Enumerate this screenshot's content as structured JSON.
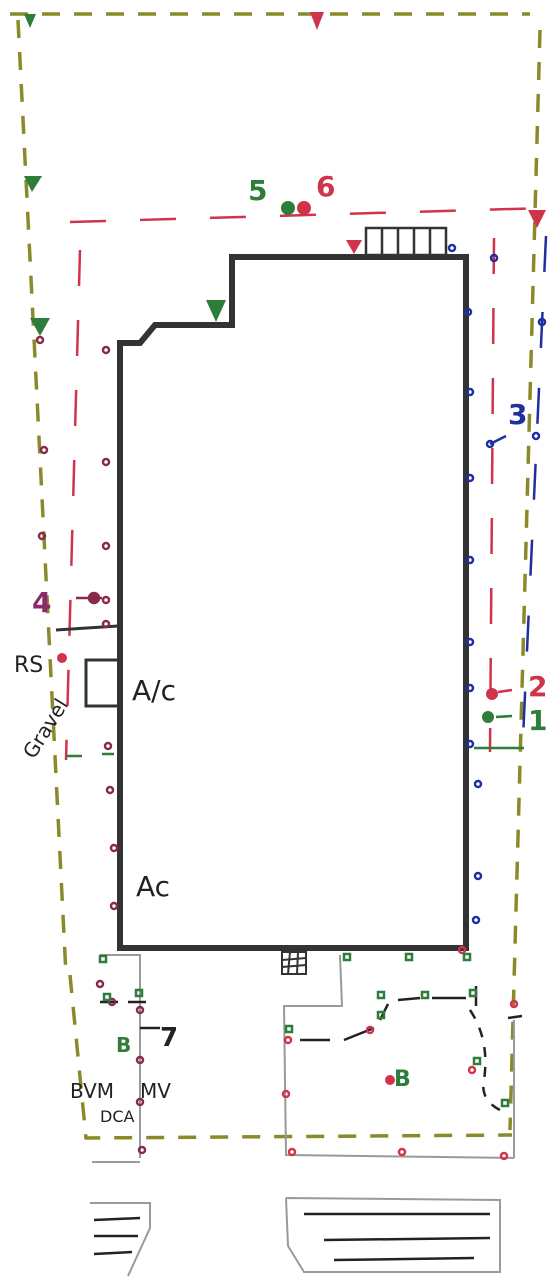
{
  "diagram": {
    "labels": {
      "marker_5": "5",
      "marker_6": "6",
      "marker_3": "3",
      "marker_4": "4",
      "marker_2": "2",
      "marker_1": "1",
      "marker_7": "7",
      "rs": "RS",
      "gravel": "Gravel",
      "ac_upper": "A/c",
      "ac_lower": "Ac",
      "zone_b_left": "B",
      "zone_b_right": "B",
      "bvm": "BVM",
      "dca": "DCA",
      "mv": "MV"
    },
    "colors": {
      "building_outline": "#333333",
      "property_line": "#8a8a2a",
      "red_dashes": "#d0344a",
      "blue_dots": "#1f2f9e",
      "green_marks": "#2e7d3a",
      "magenta_label": "#8a2a6a",
      "gray_lines": "#9a9a9a"
    }
  }
}
